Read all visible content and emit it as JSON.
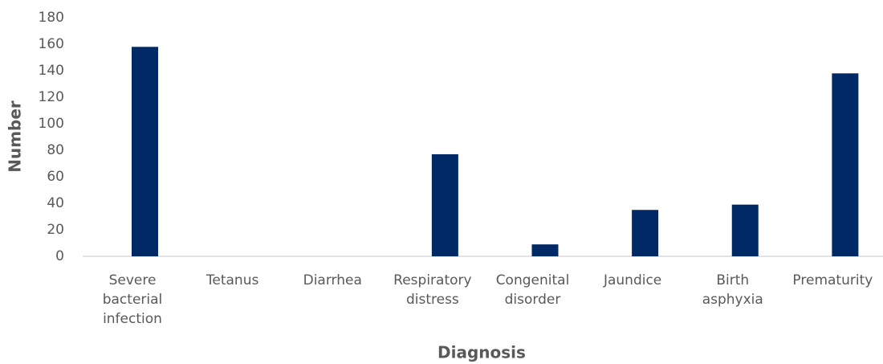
{
  "chart_data": {
    "type": "bar",
    "x_label": "Diagnosis",
    "y_label": "Number",
    "categories": [
      "Severe bacterial infection",
      "Tetanus",
      "Diarrhea",
      "Respiratory distress",
      "Congenital disorder",
      "Jaundice",
      "Birth asphyxia",
      "Prematurity"
    ],
    "values": [
      158,
      0,
      0,
      77,
      9,
      35,
      39,
      138
    ],
    "color": "#002966",
    "ylim": [
      0,
      180
    ],
    "yticks": [
      0,
      20,
      40,
      60,
      80,
      100,
      120,
      140,
      160,
      180
    ],
    "grid": false
  }
}
